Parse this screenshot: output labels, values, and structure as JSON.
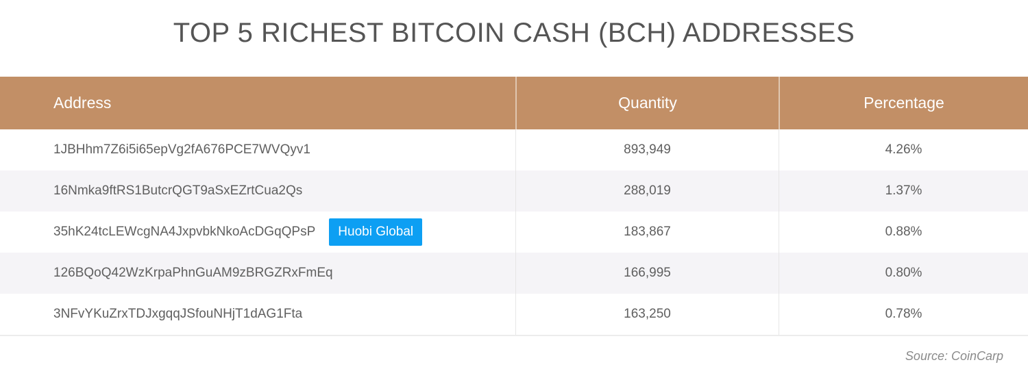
{
  "title": "TOP 5 RICHEST BITCOIN CASH (BCH) ADDRESSES",
  "table": {
    "headers": [
      "Address",
      "Quantity",
      "Percentage"
    ],
    "rows": [
      {
        "address": "1JBHhm7Z6i5i65epVg2fA676PCE7WVQyv1",
        "label": null,
        "quantity": "893,949",
        "percentage": "4.26%"
      },
      {
        "address": "16Nmka9ftRS1ButcrQGT9aSxEZrtCua2Qs",
        "label": null,
        "quantity": "288,019",
        "percentage": "1.37%"
      },
      {
        "address": "35hK24tcLEWcgNA4JxpvbkNkoAcDGqQPsP",
        "label": "Huobi Global",
        "quantity": "183,867",
        "percentage": "0.88%"
      },
      {
        "address": "126BQoQ42WzKrpaPhnGuAM9zBRGZRxFmEq",
        "label": null,
        "quantity": "166,995",
        "percentage": "0.80%"
      },
      {
        "address": "3NFvYKuZrxTDJxgqqJSfouNHjT1dAG1Fta",
        "label": null,
        "quantity": "163,250",
        "percentage": "0.78%"
      }
    ]
  },
  "source": "Source: CoinCarp",
  "colors": {
    "header_bg": "#c28f66",
    "badge_bg": "#0d9ff3",
    "alt_row_bg": "#f5f4f7"
  }
}
